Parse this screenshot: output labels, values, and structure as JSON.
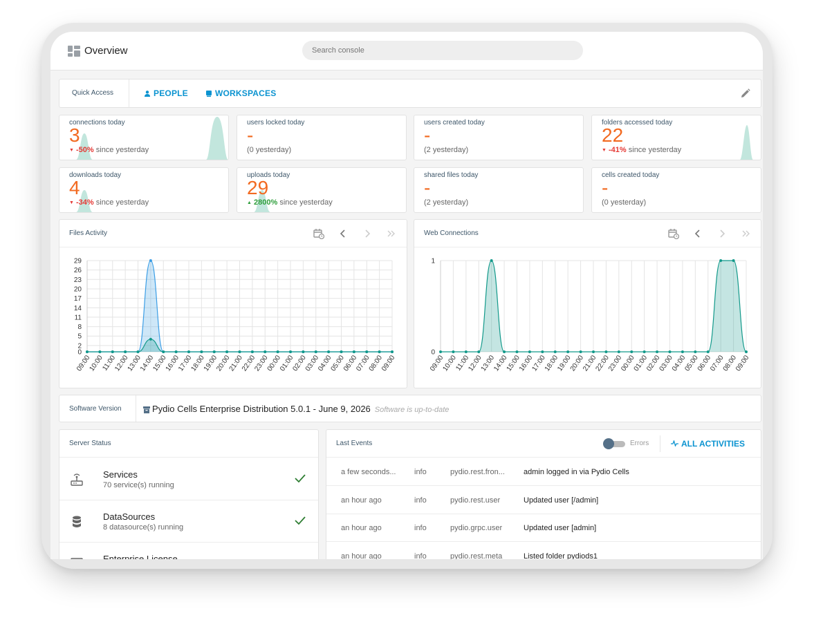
{
  "topbar": {
    "title": "Overview",
    "search_placeholder": "Search console"
  },
  "quick_access": {
    "label": "Quick Access",
    "people": "PEOPLE",
    "workspaces": "WORKSPACES"
  },
  "stats": [
    {
      "label": "connections today",
      "value": "3",
      "delta": "-50%",
      "dir": "neg",
      "since": "since yesterday"
    },
    {
      "label": "users locked today",
      "value": "-",
      "sub": "(0 yesterday)"
    },
    {
      "label": "users created today",
      "value": "-",
      "sub": "(2 yesterday)"
    },
    {
      "label": "folders accessed today",
      "value": "22",
      "delta": "-41%",
      "dir": "neg",
      "since": "since yesterday"
    },
    {
      "label": "downloads today",
      "value": "4",
      "delta": "-34%",
      "dir": "neg",
      "since": "since yesterday"
    },
    {
      "label": "uploads today",
      "value": "29",
      "delta": "2800%",
      "dir": "pos",
      "since": "since yesterday"
    },
    {
      "label": "shared files today",
      "value": "-",
      "sub": "(2 yesterday)"
    },
    {
      "label": "cells created today",
      "value": "-",
      "sub": "(0 yesterday)"
    }
  ],
  "colors": {
    "accent": "#0b93d0",
    "value": "#f26a21",
    "negative": "#e53935",
    "positive": "#2e9e3b",
    "teal": "#12998a",
    "blue": "#3c9ee5"
  },
  "chart_data": [
    {
      "type": "line",
      "title": "Files Activity",
      "x": [
        "09:00",
        "10:00",
        "11:00",
        "12:00",
        "13:00",
        "14:00",
        "15:00",
        "16:00",
        "17:00",
        "18:00",
        "19:00",
        "20:00",
        "21:00",
        "22:00",
        "23:00",
        "00:00",
        "01:00",
        "02:00",
        "03:00",
        "04:00",
        "05:00",
        "06:00",
        "07:00",
        "08:00",
        "09:00"
      ],
      "yticks": [
        0,
        2,
        5,
        8,
        11,
        14,
        17,
        20,
        23,
        26,
        29
      ],
      "ylim": [
        0,
        29
      ],
      "grid": true,
      "series": [
        {
          "values": [
            0,
            0,
            0,
            0,
            0,
            29,
            0,
            0,
            0,
            0,
            0,
            0,
            0,
            0,
            0,
            0,
            0,
            0,
            0,
            0,
            0,
            0,
            0,
            0,
            0
          ],
          "color": "#3c9ee5"
        },
        {
          "values": [
            0,
            0,
            0,
            0,
            0,
            4,
            0,
            0,
            0,
            0,
            0,
            0,
            0,
            0,
            0,
            0,
            0,
            0,
            0,
            0,
            0,
            0,
            0,
            0,
            0
          ],
          "color": "#12998a"
        }
      ]
    },
    {
      "type": "line",
      "title": "Web Connections",
      "x": [
        "09:00",
        "10:00",
        "11:00",
        "12:00",
        "13:00",
        "14:00",
        "15:00",
        "16:00",
        "17:00",
        "18:00",
        "19:00",
        "20:00",
        "21:00",
        "22:00",
        "23:00",
        "00:00",
        "01:00",
        "02:00",
        "03:00",
        "04:00",
        "05:00",
        "06:00",
        "07:00",
        "08:00",
        "09:00"
      ],
      "yticks": [
        0,
        1
      ],
      "ylim": [
        0,
        1
      ],
      "grid": true,
      "series": [
        {
          "values": [
            0,
            0,
            0,
            0,
            1,
            0,
            0,
            0,
            0,
            0,
            0,
            0,
            0,
            0,
            0,
            0,
            0,
            0,
            0,
            0,
            0,
            0,
            1,
            1,
            0
          ],
          "color": "#12998a"
        }
      ]
    }
  ],
  "software": {
    "label": "Software Version",
    "version": "Pydio Cells Enterprise Distribution 5.0.1 - June 9, 2026",
    "status": "Software is up-to-date"
  },
  "server_status": {
    "title": "Server Status",
    "items": [
      {
        "name": "Services",
        "desc": "70 service(s) running"
      },
      {
        "name": "DataSources",
        "desc": "8 datasource(s) running"
      },
      {
        "name": "Enterprise License"
      }
    ]
  },
  "last_events": {
    "title": "Last Events",
    "errors_label": "Errors",
    "all_label": "ALL ACTIVITIES",
    "rows": [
      {
        "time": "a few seconds...",
        "level": "info",
        "source": "pydio.rest.fron...",
        "message": "admin logged in via Pydio Cells"
      },
      {
        "time": "an hour ago",
        "level": "info",
        "source": "pydio.rest.user",
        "message": "Updated user [/admin]"
      },
      {
        "time": "an hour ago",
        "level": "info",
        "source": "pydio.grpc.user",
        "message": "Updated user [admin]"
      },
      {
        "time": "an hour ago",
        "level": "info",
        "source": "pydio.rest.meta",
        "message": "Listed folder pydiods1"
      }
    ]
  }
}
